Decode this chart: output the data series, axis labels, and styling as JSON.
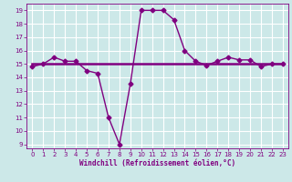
{
  "line1_x": [
    0,
    1,
    2,
    3,
    4,
    5,
    6,
    7,
    8,
    9,
    10,
    11,
    12,
    13,
    14,
    15,
    16,
    17,
    18,
    19,
    20,
    21,
    22,
    23
  ],
  "line1_y": [
    14.8,
    15.0,
    15.5,
    15.2,
    15.2,
    14.5,
    14.3,
    11.0,
    9.0,
    13.5,
    19.0,
    19.0,
    19.0,
    18.3,
    16.0,
    15.2,
    14.9,
    15.2,
    15.5,
    15.3,
    15.3,
    14.8,
    15.0,
    15.0
  ],
  "line2_x": [
    0,
    1,
    2,
    3,
    4,
    5,
    6,
    7,
    8,
    9,
    10,
    11,
    12,
    13,
    14,
    15,
    16,
    17,
    18,
    19,
    20,
    21,
    22,
    23
  ],
  "line2_y": [
    15.0,
    15.0,
    15.0,
    15.0,
    15.0,
    15.0,
    15.0,
    15.0,
    15.0,
    15.0,
    15.0,
    15.0,
    15.0,
    15.0,
    15.0,
    15.0,
    15.0,
    15.0,
    15.0,
    15.0,
    15.0,
    15.0,
    15.0,
    15.0
  ],
  "line_color": "#800080",
  "bg_color": "#cce8e8",
  "grid_color": "#ffffff",
  "xlabel": "Windchill (Refroidissement éolien,°C)",
  "ylabel": "",
  "xlim": [
    -0.5,
    23.5
  ],
  "ylim": [
    8.7,
    19.5
  ],
  "yticks": [
    9,
    10,
    11,
    12,
    13,
    14,
    15,
    16,
    17,
    18,
    19
  ],
  "xticks": [
    0,
    1,
    2,
    3,
    4,
    5,
    6,
    7,
    8,
    9,
    10,
    11,
    12,
    13,
    14,
    15,
    16,
    17,
    18,
    19,
    20,
    21,
    22,
    23
  ],
  "marker": "D",
  "label_fontsize": 5.5,
  "tick_fontsize": 5.0
}
